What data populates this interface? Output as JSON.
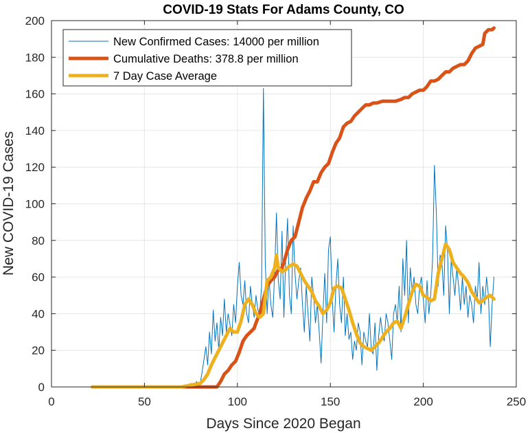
{
  "chart_data": {
    "type": "line",
    "title": "COVID-19 Stats For Adams County, CO",
    "xlabel": "Days Since 2020 Began",
    "ylabel": "New COVID-19 Cases",
    "xlim": [
      0,
      250
    ],
    "ylim": [
      0,
      200
    ],
    "xticks": [
      0,
      50,
      100,
      150,
      200,
      250
    ],
    "yticks": [
      0,
      20,
      40,
      60,
      80,
      100,
      120,
      140,
      160,
      180,
      200
    ],
    "grid": true,
    "legend_position": "top-left",
    "series": [
      {
        "name": "New Confirmed Cases: 14000 per million",
        "color": "#0072BD",
        "points": [
          [
            22,
            0
          ],
          [
            40,
            0
          ],
          [
            60,
            0
          ],
          [
            70,
            0
          ],
          [
            71,
            1
          ],
          [
            72,
            0
          ],
          [
            73,
            1
          ],
          [
            74,
            0
          ],
          [
            75,
            2
          ],
          [
            76,
            0
          ],
          [
            77,
            1
          ],
          [
            78,
            3
          ],
          [
            79,
            0
          ],
          [
            80,
            2
          ],
          [
            81,
            8
          ],
          [
            82,
            15
          ],
          [
            83,
            22
          ],
          [
            84,
            12
          ],
          [
            85,
            30
          ],
          [
            86,
            18
          ],
          [
            87,
            42
          ],
          [
            88,
            25
          ],
          [
            89,
            35
          ],
          [
            90,
            20
          ],
          [
            91,
            38
          ],
          [
            92,
            28
          ],
          [
            93,
            48
          ],
          [
            94,
            30
          ],
          [
            95,
            40
          ],
          [
            96,
            34
          ],
          [
            97,
            28
          ],
          [
            98,
            45
          ],
          [
            99,
            35
          ],
          [
            100,
            55
          ],
          [
            101,
            68
          ],
          [
            102,
            50
          ],
          [
            103,
            45
          ],
          [
            104,
            58
          ],
          [
            105,
            40
          ],
          [
            106,
            35
          ],
          [
            107,
            55
          ],
          [
            108,
            45
          ],
          [
            109,
            38
          ],
          [
            110,
            50
          ],
          [
            111,
            42
          ],
          [
            112,
            40
          ],
          [
            113,
            55
          ],
          [
            114,
            163
          ],
          [
            115,
            68
          ],
          [
            116,
            40
          ],
          [
            117,
            60
          ],
          [
            118,
            45
          ],
          [
            119,
            38
          ],
          [
            120,
            62
          ],
          [
            121,
            95
          ],
          [
            122,
            58
          ],
          [
            123,
            48
          ],
          [
            124,
            85
          ],
          [
            125,
            38
          ],
          [
            126,
            70
          ],
          [
            127,
            92
          ],
          [
            128,
            50
          ],
          [
            129,
            40
          ],
          [
            130,
            88
          ],
          [
            131,
            62
          ],
          [
            132,
            48
          ],
          [
            133,
            58
          ],
          [
            134,
            65
          ],
          [
            135,
            45
          ],
          [
            136,
            30
          ],
          [
            137,
            55
          ],
          [
            138,
            40
          ],
          [
            139,
            25
          ],
          [
            140,
            60
          ],
          [
            141,
            50
          ],
          [
            142,
            35
          ],
          [
            143,
            45
          ],
          [
            144,
            30
          ],
          [
            145,
            13
          ],
          [
            146,
            40
          ],
          [
            147,
            62
          ],
          [
            148,
            35
          ],
          [
            149,
            75
          ],
          [
            150,
            82
          ],
          [
            151,
            48
          ],
          [
            152,
            30
          ],
          [
            153,
            55
          ],
          [
            154,
            70
          ],
          [
            155,
            45
          ],
          [
            156,
            35
          ],
          [
            157,
            60
          ],
          [
            158,
            28
          ],
          [
            159,
            40
          ],
          [
            160,
            26
          ],
          [
            161,
            30
          ],
          [
            162,
            15
          ],
          [
            163,
            25
          ],
          [
            164,
            20
          ],
          [
            165,
            35
          ],
          [
            166,
            30
          ],
          [
            167,
            12
          ],
          [
            168,
            30
          ],
          [
            169,
            25
          ],
          [
            170,
            22
          ],
          [
            171,
            40
          ],
          [
            172,
            20
          ],
          [
            173,
            18
          ],
          [
            174,
            35
          ],
          [
            175,
            9
          ],
          [
            176,
            28
          ],
          [
            177,
            38
          ],
          [
            178,
            30
          ],
          [
            179,
            25
          ],
          [
            180,
            40
          ],
          [
            181,
            35
          ],
          [
            182,
            25
          ],
          [
            183,
            15
          ],
          [
            184,
            40
          ],
          [
            185,
            45
          ],
          [
            186,
            35
          ],
          [
            187,
            55
          ],
          [
            188,
            30
          ],
          [
            189,
            70
          ],
          [
            190,
            50
          ],
          [
            191,
            80
          ],
          [
            192,
            35
          ],
          [
            193,
            65
          ],
          [
            194,
            52
          ],
          [
            195,
            60
          ],
          [
            196,
            45
          ],
          [
            197,
            40
          ],
          [
            198,
            55
          ],
          [
            199,
            60
          ],
          [
            200,
            48
          ],
          [
            201,
            35
          ],
          [
            202,
            58
          ],
          [
            203,
            40
          ],
          [
            204,
            50
          ],
          [
            205,
            70
          ],
          [
            206,
            121
          ],
          [
            207,
            95
          ],
          [
            208,
            55
          ],
          [
            209,
            72
          ],
          [
            210,
            68
          ],
          [
            211,
            50
          ],
          [
            212,
            88
          ],
          [
            213,
            75
          ],
          [
            214,
            40
          ],
          [
            215,
            70
          ],
          [
            216,
            60
          ],
          [
            217,
            50
          ],
          [
            218,
            65
          ],
          [
            219,
            55
          ],
          [
            220,
            42
          ],
          [
            221,
            60
          ],
          [
            222,
            45
          ],
          [
            223,
            55
          ],
          [
            224,
            38
          ],
          [
            225,
            50
          ],
          [
            226,
            45
          ],
          [
            227,
            35
          ],
          [
            228,
            55
          ],
          [
            229,
            48
          ],
          [
            230,
            68
          ],
          [
            231,
            40
          ],
          [
            232,
            55
          ],
          [
            233,
            45
          ],
          [
            234,
            60
          ],
          [
            235,
            50
          ],
          [
            236,
            22
          ],
          [
            237,
            45
          ],
          [
            238,
            60
          ]
        ]
      },
      {
        "name": "Cumulative Deaths: 378.8 per million",
        "color": "#D95319",
        "points": [
          [
            22,
            0
          ],
          [
            89,
            0
          ],
          [
            91,
            3
          ],
          [
            93,
            7
          ],
          [
            95,
            9
          ],
          [
            97,
            12
          ],
          [
            99,
            14
          ],
          [
            101,
            19
          ],
          [
            103,
            25
          ],
          [
            105,
            28
          ],
          [
            107,
            30
          ],
          [
            109,
            32
          ],
          [
            110,
            35
          ],
          [
            112,
            40
          ],
          [
            114,
            48
          ],
          [
            116,
            55
          ],
          [
            118,
            58
          ],
          [
            120,
            60
          ],
          [
            121,
            62
          ],
          [
            122,
            64
          ],
          [
            124,
            65
          ],
          [
            125,
            68
          ],
          [
            127,
            75
          ],
          [
            129,
            80
          ],
          [
            131,
            82
          ],
          [
            133,
            90
          ],
          [
            135,
            98
          ],
          [
            137,
            103
          ],
          [
            139,
            107
          ],
          [
            141,
            112
          ],
          [
            143,
            112
          ],
          [
            145,
            117
          ],
          [
            147,
            120
          ],
          [
            149,
            122
          ],
          [
            151,
            128
          ],
          [
            153,
            133
          ],
          [
            155,
            136
          ],
          [
            157,
            142
          ],
          [
            159,
            144
          ],
          [
            161,
            145
          ],
          [
            163,
            148
          ],
          [
            165,
            150
          ],
          [
            167,
            152
          ],
          [
            169,
            154
          ],
          [
            171,
            154
          ],
          [
            173,
            155
          ],
          [
            175,
            155
          ],
          [
            178,
            156
          ],
          [
            182,
            156
          ],
          [
            185,
            156
          ],
          [
            188,
            157
          ],
          [
            190,
            158
          ],
          [
            192,
            158
          ],
          [
            194,
            160
          ],
          [
            196,
            161
          ],
          [
            198,
            162
          ],
          [
            200,
            162
          ],
          [
            202,
            164
          ],
          [
            204,
            167
          ],
          [
            206,
            167
          ],
          [
            208,
            168
          ],
          [
            210,
            170
          ],
          [
            212,
            172
          ],
          [
            214,
            172
          ],
          [
            216,
            174
          ],
          [
            218,
            175
          ],
          [
            220,
            176
          ],
          [
            222,
            176
          ],
          [
            224,
            178
          ],
          [
            226,
            182
          ],
          [
            228,
            185
          ],
          [
            230,
            186
          ],
          [
            232,
            187
          ],
          [
            233,
            193
          ],
          [
            235,
            195
          ],
          [
            237,
            195
          ],
          [
            238,
            196
          ]
        ]
      },
      {
        "name": "7 Day Case Average",
        "color": "#EDB120",
        "points": [
          [
            22,
            0
          ],
          [
            40,
            0
          ],
          [
            60,
            0
          ],
          [
            70,
            0
          ],
          [
            75,
            1
          ],
          [
            80,
            2
          ],
          [
            82,
            4
          ],
          [
            84,
            7
          ],
          [
            86,
            12
          ],
          [
            88,
            16
          ],
          [
            90,
            20
          ],
          [
            92,
            24
          ],
          [
            94,
            28
          ],
          [
            96,
            32
          ],
          [
            98,
            30
          ],
          [
            100,
            30
          ],
          [
            102,
            36
          ],
          [
            104,
            45
          ],
          [
            106,
            48
          ],
          [
            108,
            45
          ],
          [
            110,
            40
          ],
          [
            112,
            38
          ],
          [
            114,
            40
          ],
          [
            116,
            58
          ],
          [
            118,
            60
          ],
          [
            120,
            65
          ],
          [
            121,
            72
          ],
          [
            122,
            65
          ],
          [
            124,
            63
          ],
          [
            126,
            64
          ],
          [
            128,
            66
          ],
          [
            130,
            67
          ],
          [
            132,
            66
          ],
          [
            134,
            62
          ],
          [
            136,
            58
          ],
          [
            138,
            55
          ],
          [
            140,
            52
          ],
          [
            142,
            47
          ],
          [
            144,
            44
          ],
          [
            146,
            40
          ],
          [
            148,
            42
          ],
          [
            150,
            46
          ],
          [
            152,
            54
          ],
          [
            154,
            55
          ],
          [
            156,
            54
          ],
          [
            158,
            48
          ],
          [
            160,
            42
          ],
          [
            162,
            35
          ],
          [
            164,
            29
          ],
          [
            166,
            24
          ],
          [
            168,
            22
          ],
          [
            170,
            21
          ],
          [
            172,
            20
          ],
          [
            174,
            22
          ],
          [
            176,
            24
          ],
          [
            178,
            27
          ],
          [
            180,
            30
          ],
          [
            182,
            32
          ],
          [
            184,
            35
          ],
          [
            186,
            36
          ],
          [
            188,
            32
          ],
          [
            190,
            38
          ],
          [
            192,
            45
          ],
          [
            194,
            52
          ],
          [
            196,
            56
          ],
          [
            198,
            55
          ],
          [
            200,
            50
          ],
          [
            202,
            49
          ],
          [
            204,
            47
          ],
          [
            206,
            48
          ],
          [
            208,
            62
          ],
          [
            210,
            70
          ],
          [
            212,
            78
          ],
          [
            214,
            75
          ],
          [
            216,
            68
          ],
          [
            218,
            65
          ],
          [
            220,
            62
          ],
          [
            222,
            60
          ],
          [
            224,
            57
          ],
          [
            226,
            52
          ],
          [
            228,
            49
          ],
          [
            230,
            46
          ],
          [
            232,
            47
          ],
          [
            234,
            49
          ],
          [
            236,
            50
          ],
          [
            238,
            48
          ]
        ]
      }
    ]
  }
}
